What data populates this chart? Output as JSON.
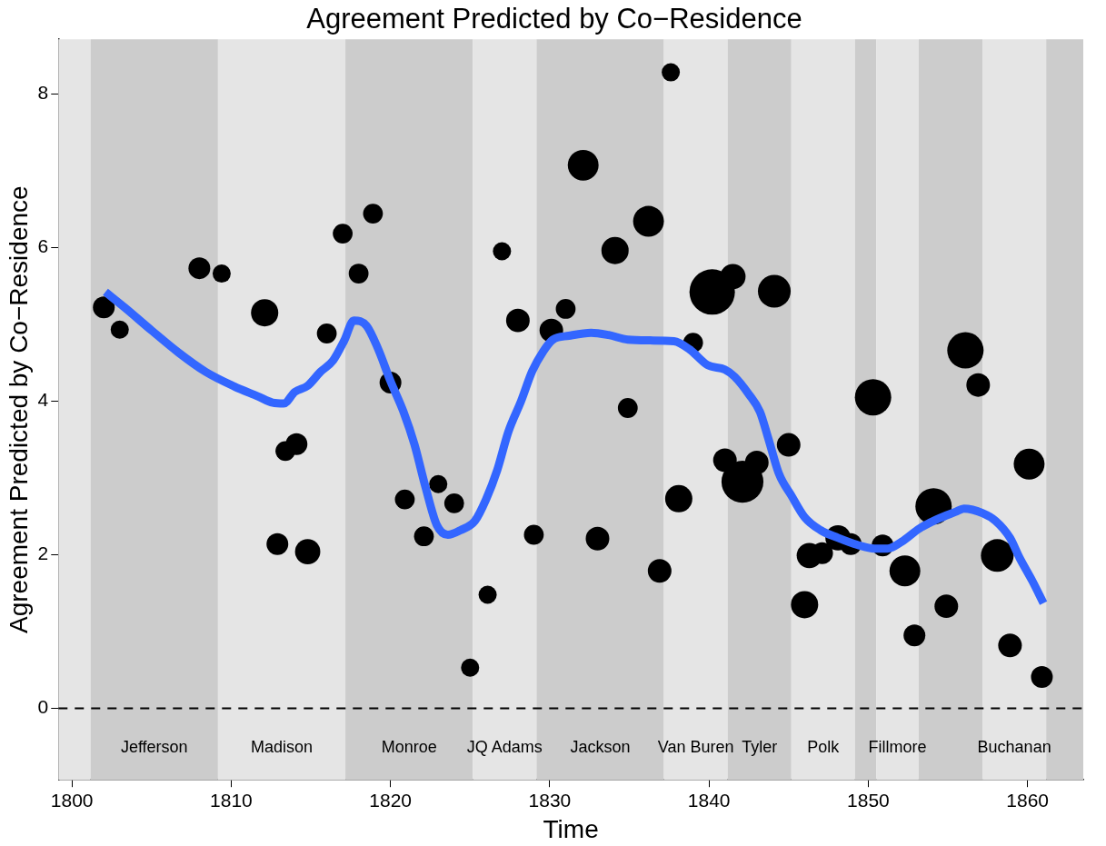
{
  "chart_data": {
    "type": "bubble",
    "title": "Agreement Predicted by Co−Residence",
    "xlabel": "Time",
    "ylabel": "Agreement Predicted by Co−Residence",
    "xlim": [
      1799.15,
      1863.5
    ],
    "ylim": [
      -0.93,
      8.71
    ],
    "xticks": [
      1800,
      1810,
      1820,
      1830,
      1840,
      1850,
      1860
    ],
    "yticks": [
      0,
      2,
      4,
      6,
      8
    ],
    "grid": false,
    "legend": false,
    "series": [
      {
        "color": "#000000",
        "marker": "circle",
        "x": [
          1802.0,
          1803.0,
          1808.0,
          1809.4,
          1812.1,
          1812.9,
          1813.4,
          1814.1,
          1814.8,
          1816.0,
          1817.0,
          1818.0,
          1818.9,
          1820.0,
          1820.9,
          1822.1,
          1823.0,
          1824.0,
          1825.0,
          1826.1,
          1827.0,
          1828.0,
          1829.0,
          1830.1,
          1831.0,
          1832.1,
          1833.0,
          1834.1,
          1834.9,
          1836.2,
          1836.9,
          1837.6,
          1838.1,
          1839.0,
          1840.2,
          1841.0,
          1841.5,
          1842.1,
          1843.0,
          1844.1,
          1845.0,
          1846.0,
          1846.3,
          1847.1,
          1848.1,
          1848.9,
          1850.3,
          1850.9,
          1852.3,
          1852.9,
          1854.1,
          1854.9,
          1856.1,
          1856.9,
          1858.1,
          1858.9,
          1860.1,
          1860.9
        ],
        "values": [
          5.22,
          4.93,
          5.73,
          5.66,
          5.15,
          2.14,
          3.35,
          3.44,
          2.04,
          4.88,
          6.18,
          5.66,
          6.44,
          4.24,
          2.72,
          2.24,
          2.92,
          2.67,
          0.53,
          1.48,
          5.95,
          5.05,
          2.26,
          4.92,
          5.2,
          7.07,
          2.21,
          5.96,
          3.91,
          6.34,
          1.79,
          8.28,
          2.73,
          4.76,
          5.42,
          3.23,
          5.62,
          2.95,
          3.2,
          5.43,
          3.43,
          1.35,
          1.99,
          2.02,
          2.22,
          2.14,
          4.05,
          2.12,
          1.79,
          0.95,
          2.63,
          1.33,
          4.66,
          4.21,
          1.99,
          0.82,
          3.18,
          0.41
        ],
        "sizes": [
          0.23,
          0.16,
          0.23,
          0.16,
          0.36,
          0.23,
          0.19,
          0.23,
          0.31,
          0.19,
          0.19,
          0.19,
          0.19,
          0.23,
          0.19,
          0.19,
          0.16,
          0.19,
          0.16,
          0.16,
          0.16,
          0.27,
          0.19,
          0.27,
          0.19,
          0.46,
          0.27,
          0.36,
          0.19,
          0.46,
          0.27,
          0.16,
          0.36,
          0.19,
          1,
          0.27,
          0.31,
          0.85,
          0.27,
          0.52,
          0.27,
          0.36,
          0.31,
          0.23,
          0.31,
          0.23,
          0.64,
          0.23,
          0.46,
          0.23,
          0.64,
          0.27,
          0.64,
          0.27,
          0.52,
          0.27,
          0.46,
          0.23
        ]
      },
      {
        "type": "line",
        "color": "#3366ff",
        "marker": "none",
        "x": [
          1802.1,
          1803.3,
          1805.0,
          1806.7,
          1808.4,
          1810.2,
          1811.7,
          1812.6,
          1813.3,
          1814.0,
          1814.8,
          1815.6,
          1816.4,
          1817.1,
          1817.7,
          1818.5,
          1819.2,
          1820.0,
          1820.8,
          1821.5,
          1822.2,
          1822.9,
          1823.6,
          1824.4,
          1825.3,
          1826.0,
          1826.7,
          1827.4,
          1828.2,
          1828.9,
          1829.6,
          1830.2,
          1831.2,
          1832.6,
          1833.7,
          1834.9,
          1836.3,
          1837.8,
          1838.8,
          1839.9,
          1841.0,
          1841.6,
          1842.5,
          1843.2,
          1843.7,
          1844.4,
          1845.2,
          1846.0,
          1847.0,
          1848.1,
          1849.3,
          1850.4,
          1851.2,
          1852.1,
          1853.2,
          1854.3,
          1855.5,
          1856.0,
          1857.2,
          1858.0,
          1858.9,
          1859.5,
          1860.3,
          1861.0
        ],
        "values": [
          5.42,
          5.22,
          4.92,
          4.63,
          4.38,
          4.19,
          4.06,
          3.98,
          3.97,
          4.12,
          4.2,
          4.38,
          4.53,
          4.79,
          5.05,
          4.98,
          4.69,
          4.26,
          3.87,
          3.44,
          2.88,
          2.39,
          2.26,
          2.32,
          2.44,
          2.72,
          3.1,
          3.6,
          4.0,
          4.39,
          4.65,
          4.8,
          4.85,
          4.89,
          4.86,
          4.8,
          4.79,
          4.78,
          4.67,
          4.47,
          4.41,
          4.32,
          4.09,
          3.86,
          3.53,
          3.05,
          2.76,
          2.49,
          2.32,
          2.22,
          2.13,
          2.08,
          2.08,
          2.17,
          2.34,
          2.46,
          2.56,
          2.6,
          2.54,
          2.44,
          2.22,
          1.96,
          1.66,
          1.37
        ]
      }
    ],
    "ref_lines": [
      {
        "axis": "y",
        "value": 0,
        "color": "#000000",
        "line_style": "dashed"
      }
    ],
    "bands": [
      {
        "axis": "x",
        "from": 1799.15,
        "to": 1801.17,
        "color": "#e5e5e5"
      },
      {
        "axis": "x",
        "from": 1801.17,
        "to": 1809.17,
        "color": "#cccccc",
        "label": "Jefferson"
      },
      {
        "axis": "x",
        "from": 1809.17,
        "to": 1817.17,
        "color": "#e5e5e5",
        "label": "Madison"
      },
      {
        "axis": "x",
        "from": 1817.17,
        "to": 1825.17,
        "color": "#cccccc",
        "label": "Monroe"
      },
      {
        "axis": "x",
        "from": 1825.17,
        "to": 1829.17,
        "color": "#e5e5e5",
        "label": "JQ Adams"
      },
      {
        "axis": "x",
        "from": 1829.17,
        "to": 1837.17,
        "color": "#cccccc",
        "label": "Jackson"
      },
      {
        "axis": "x",
        "from": 1837.17,
        "to": 1841.17,
        "color": "#e5e5e5",
        "label": "Van Buren"
      },
      {
        "axis": "x",
        "from": 1841.17,
        "to": 1845.17,
        "color": "#cccccc",
        "label": "Tyler"
      },
      {
        "axis": "x",
        "from": 1845.17,
        "to": 1849.17,
        "color": "#e5e5e5",
        "label": "Polk"
      },
      {
        "axis": "x",
        "from": 1849.17,
        "to": 1850.5,
        "color": "#cccccc"
      },
      {
        "axis": "x",
        "from": 1850.5,
        "to": 1853.17,
        "color": "#e5e5e5",
        "label": "Fillmore"
      },
      {
        "axis": "x",
        "from": 1853.17,
        "to": 1857.17,
        "color": "#cccccc"
      },
      {
        "axis": "x",
        "from": 1857.17,
        "to": 1861.17,
        "color": "#e5e5e5",
        "label": "Buchanan"
      },
      {
        "axis": "x",
        "from": 1861.17,
        "to": 1863.5,
        "color": "#cccccc"
      }
    ]
  }
}
